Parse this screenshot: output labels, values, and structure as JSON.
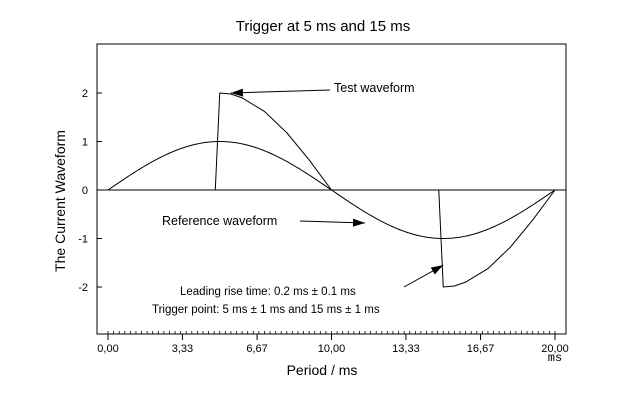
{
  "chart_data": {
    "type": "line",
    "title": "Trigger at 5 ms and 15 ms",
    "xlabel": "Period / ms",
    "ylabel": "The Current Waveform",
    "x_unit_label": "ms",
    "xlim": [
      0,
      20
    ],
    "ylim": [
      -3,
      3
    ],
    "x_ticks": [
      0,
      3.33,
      6.67,
      10,
      13.33,
      16.67,
      20
    ],
    "x_tick_labels": [
      "0,00",
      "3,33",
      "6,67",
      "10,00",
      "13,33",
      "16,67",
      "20,00"
    ],
    "y_ticks": [
      2,
      1,
      0,
      -1,
      -2
    ],
    "y_tick_labels": [
      "2",
      "1",
      "0",
      "-1",
      "-2"
    ],
    "grid": false,
    "series": [
      {
        "label": "Reference waveform",
        "description": "sine, amplitude 1, period 20 ms",
        "x": [
          0,
          1,
          2,
          3,
          4,
          5,
          6,
          7,
          8,
          9,
          10,
          11,
          12,
          13,
          14,
          15,
          16,
          17,
          18,
          19,
          20
        ],
        "y": [
          0,
          0.31,
          0.59,
          0.81,
          0.95,
          1.0,
          0.95,
          0.81,
          0.59,
          0.31,
          0,
          -0.31,
          -0.59,
          -0.81,
          -0.95,
          -1.0,
          -0.95,
          -0.81,
          -0.59,
          -0.31,
          0
        ]
      },
      {
        "label": "Test waveform",
        "description": "phase-controlled, triggered at 5 ms and 15 ms",
        "x": [
          0,
          4.8,
          5.0,
          5.5,
          6,
          7,
          8,
          9,
          10,
          14.8,
          15.0,
          15.5,
          16,
          17,
          18,
          19,
          20
        ],
        "y": [
          0,
          0,
          2.0,
          1.98,
          1.9,
          1.62,
          1.18,
          0.62,
          0,
          0,
          -2.0,
          -1.98,
          -1.9,
          -1.62,
          -1.18,
          -0.62,
          0
        ]
      }
    ],
    "annotations": [
      {
        "text": "Test waveform",
        "arrow_to": [
          5.5,
          2.0
        ]
      },
      {
        "text": "Reference waveform",
        "arrow_to": [
          11.5,
          -0.68
        ]
      },
      {
        "text": "Leading rise time: 0.2 ms ± 0.1 ms",
        "arrow_to": [
          15.0,
          -1.55
        ]
      },
      {
        "text": "Trigger point: 5 ms ± 1 ms and 15 ms ± 1 ms"
      }
    ]
  }
}
